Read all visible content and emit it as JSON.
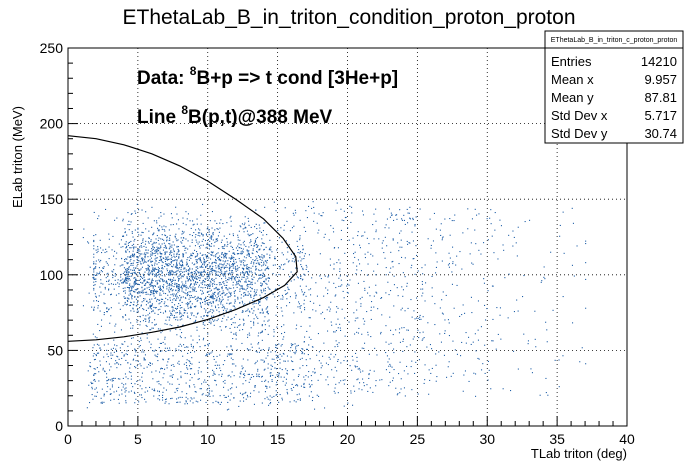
{
  "title": "EThetaLab_B_in_triton_condition_proton_proton",
  "stats_box": {
    "title": "EThetaLab_B_in_triton_c_proton_proton",
    "rows": [
      {
        "label": "Entries",
        "value": "14210"
      },
      {
        "label": "Mean x",
        "value": "9.957"
      },
      {
        "label": "Mean y",
        "value": "87.81"
      },
      {
        "label": "Std Dev x",
        "value": "5.717"
      },
      {
        "label": "Std Dev y",
        "value": "30.74"
      }
    ]
  },
  "annotations": {
    "line1_pre": "Data: ",
    "line1_sup": "8",
    "line1_post": "B+p => t cond [3He+p]",
    "line2_pre": "Line ",
    "line2_sup": "8",
    "line2_post": "B(p,t)@388 MeV"
  },
  "colors": {
    "points": "#1f5fa8",
    "curve": "#000000",
    "grid": "#000000"
  },
  "chart_data": {
    "type": "scatter",
    "title": "EThetaLab_B_in_triton_condition_proton_proton",
    "xlabel": "TLab triton (deg)",
    "ylabel": "ELab triton (MeV)",
    "xlim": [
      0,
      40
    ],
    "ylim": [
      0,
      250
    ],
    "xticks": [
      "0",
      "5",
      "10",
      "15",
      "20",
      "25",
      "30",
      "35",
      "40"
    ],
    "yticks": [
      "0",
      "50",
      "100",
      "150",
      "200",
      "250"
    ],
    "grid": true,
    "legend": "stats box top-right",
    "point_cloud": {
      "entries": 14210,
      "mean_x": 9.957,
      "mean_y": 87.81,
      "std_x": 5.717,
      "std_y": 30.74,
      "dense_region_x": [
        1,
        17
      ],
      "dense_region_y": [
        55,
        145
      ],
      "low_band_y": [
        15,
        55
      ]
    },
    "kinematic_line": [
      {
        "x": 0,
        "y": 56
      },
      {
        "x": 2,
        "y": 57
      },
      {
        "x": 4,
        "y": 59
      },
      {
        "x": 6,
        "y": 62
      },
      {
        "x": 8,
        "y": 65.5
      },
      {
        "x": 10,
        "y": 70.5
      },
      {
        "x": 12,
        "y": 77
      },
      {
        "x": 14,
        "y": 85
      },
      {
        "x": 15.5,
        "y": 93
      },
      {
        "x": 16.4,
        "y": 102
      },
      {
        "x": 16.3,
        "y": 112
      },
      {
        "x": 15.4,
        "y": 124
      },
      {
        "x": 14,
        "y": 137
      },
      {
        "x": 12,
        "y": 150
      },
      {
        "x": 10,
        "y": 162
      },
      {
        "x": 8,
        "y": 172
      },
      {
        "x": 6,
        "y": 180
      },
      {
        "x": 4,
        "y": 186
      },
      {
        "x": 2,
        "y": 190
      },
      {
        "x": 0,
        "y": 192
      }
    ]
  }
}
